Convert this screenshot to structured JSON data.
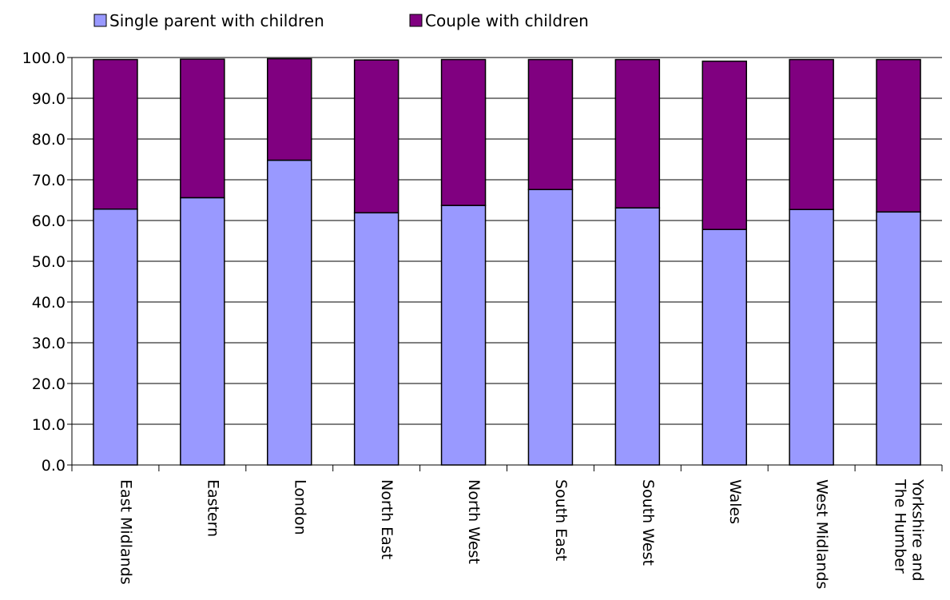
{
  "chart_data": {
    "type": "stacked-bar",
    "categories": [
      [
        "East Midlands"
      ],
      [
        "Eastern"
      ],
      [
        "London"
      ],
      [
        "North East"
      ],
      [
        "North West"
      ],
      [
        "South East"
      ],
      [
        "South West"
      ],
      [
        "Wales"
      ],
      [
        "West Midlands"
      ],
      [
        "Yorkshire and",
        "The Humber"
      ]
    ],
    "series": [
      {
        "name": "Single parent with children",
        "color": "#9999ff",
        "values": [
          62.8,
          65.6,
          74.8,
          61.9,
          63.7,
          67.6,
          63.1,
          57.8,
          62.7,
          62.1
        ]
      },
      {
        "name": "Couple with children",
        "color": "#800080",
        "values": [
          36.7,
          34.0,
          24.9,
          37.5,
          35.8,
          31.9,
          36.4,
          41.3,
          36.8,
          37.4
        ]
      }
    ],
    "ylim": [
      0,
      100
    ],
    "yticks": [
      "0.0",
      "10.0",
      "20.0",
      "30.0",
      "40.0",
      "50.0",
      "60.0",
      "70.0",
      "80.0",
      "90.0",
      "100.0"
    ],
    "grid": true,
    "legend_position": "top"
  }
}
